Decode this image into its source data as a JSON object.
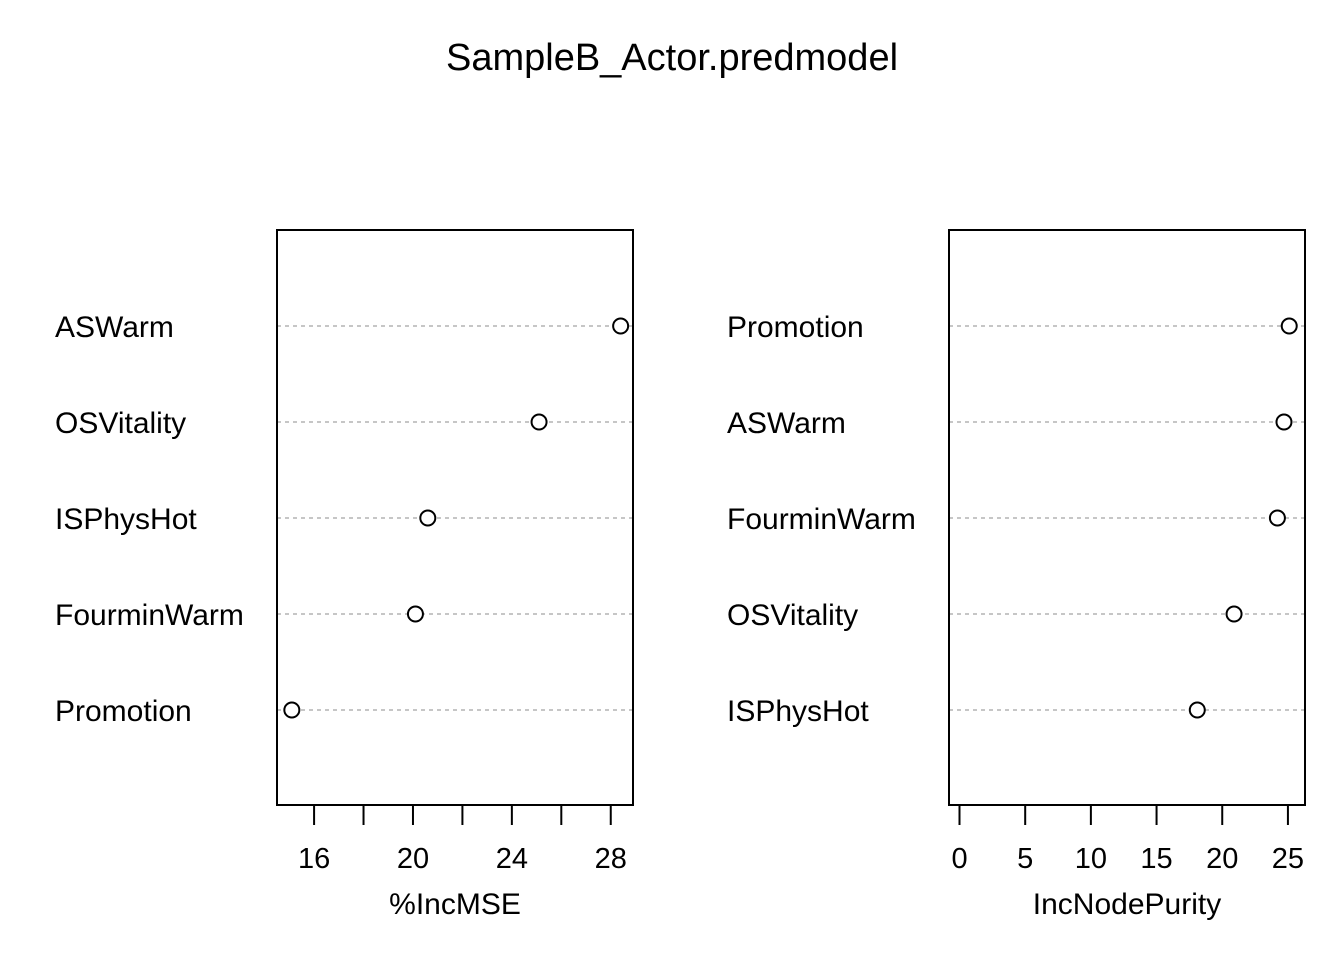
{
  "title": "SampleB_Actor.predmodel",
  "chart_data": [
    {
      "type": "scatter",
      "xlabel": "%IncMSE",
      "xlim": [
        14.5,
        28.9
      ],
      "xticks": [
        16,
        18,
        20,
        22,
        24,
        26,
        28
      ],
      "xticklabels": [
        16,
        20,
        24,
        28
      ],
      "categories": [
        "ASWarm",
        "OSVitality",
        "ISPhysHot",
        "FourminWarm",
        "Promotion"
      ],
      "values": [
        28.4,
        25.1,
        20.6,
        20.1,
        15.1
      ]
    },
    {
      "type": "scatter",
      "xlabel": "IncNodePurity",
      "xlim": [
        -0.8,
        26.3
      ],
      "xticks": [
        0,
        5,
        10,
        15,
        20,
        25
      ],
      "xticklabels": [
        0,
        5,
        10,
        15,
        20,
        25
      ],
      "categories": [
        "Promotion",
        "ASWarm",
        "FourminWarm",
        "OSVitality",
        "ISPhysHot"
      ],
      "values": [
        25.1,
        24.7,
        24.2,
        20.9,
        18.1
      ]
    }
  ]
}
